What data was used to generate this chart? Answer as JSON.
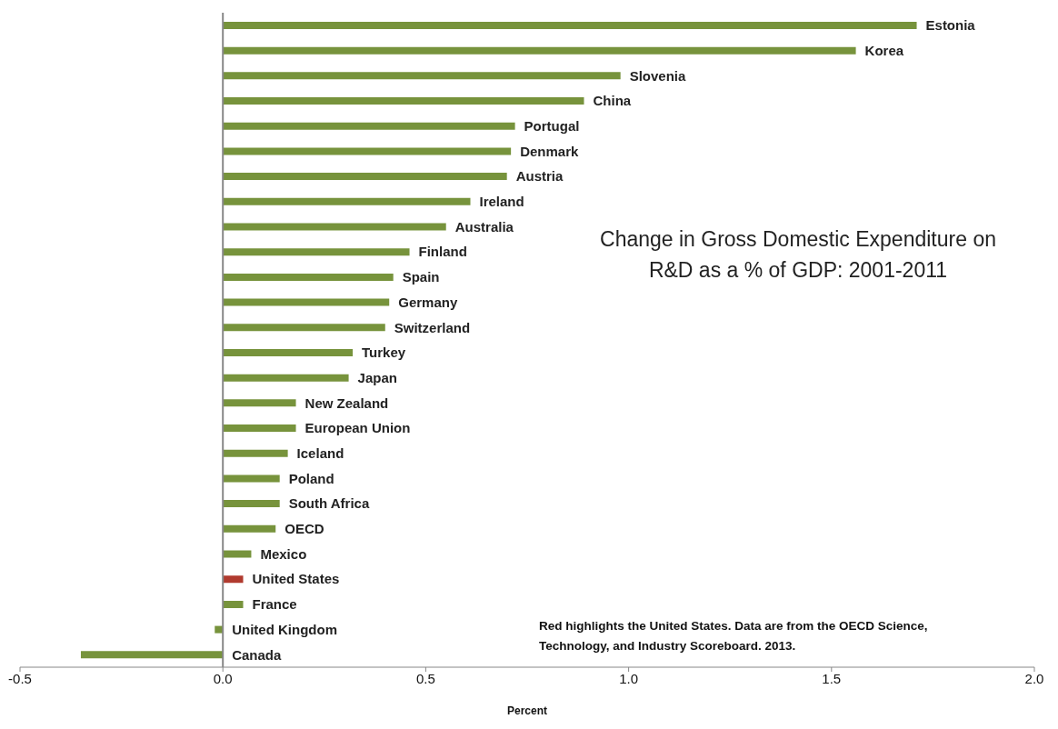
{
  "chart_data": {
    "type": "bar",
    "orientation": "horizontal",
    "title": "Change in Gross Domestic Expenditure on R&D as a % of GDP: 2001-2011",
    "xlabel": "Percent",
    "categories": [
      "Estonia",
      "Korea",
      "Slovenia",
      "China",
      "Portugal",
      "Denmark",
      "Austria",
      "Ireland",
      "Australia",
      "Finland",
      "Spain",
      "Germany",
      "Switzerland",
      "Turkey",
      "Japan",
      "New Zealand",
      "European Union",
      "Iceland",
      "Poland",
      "South Africa",
      "OECD",
      "Mexico",
      "United States",
      "France",
      "United Kingdom",
      "Canada"
    ],
    "values": [
      1.71,
      1.56,
      0.98,
      0.89,
      0.72,
      0.71,
      0.7,
      0.61,
      0.55,
      0.46,
      0.42,
      0.41,
      0.4,
      0.32,
      0.31,
      0.18,
      0.18,
      0.16,
      0.14,
      0.14,
      0.13,
      0.07,
      0.05,
      0.05,
      -0.02,
      -0.35
    ],
    "colors": [
      "#77933c",
      "#77933c",
      "#77933c",
      "#77933c",
      "#77933c",
      "#77933c",
      "#77933c",
      "#77933c",
      "#77933c",
      "#77933c",
      "#77933c",
      "#77933c",
      "#77933c",
      "#77933c",
      "#77933c",
      "#77933c",
      "#77933c",
      "#77933c",
      "#77933c",
      "#77933c",
      "#77933c",
      "#77933c",
      "#b03a2e",
      "#77933c",
      "#77933c",
      "#77933c"
    ],
    "xlim": [
      -0.5,
      2.0
    ],
    "xticks": [
      {
        "value": -0.5,
        "label": "-0.5"
      },
      {
        "value": 0,
        "label": "0.0"
      },
      {
        "value": 0.5,
        "label": "0.5"
      },
      {
        "value": 1.0,
        "label": "1.0"
      },
      {
        "value": 1.5,
        "label": "1.5"
      },
      {
        "value": 2.0,
        "label": "2.0"
      }
    ],
    "tick_labels": "x",
    "grid": false,
    "legend": false,
    "annotations": [
      "Red highlights the United States. Data are from the OECD Science, Technology, and Industry Scoreboard. 2013."
    ]
  }
}
